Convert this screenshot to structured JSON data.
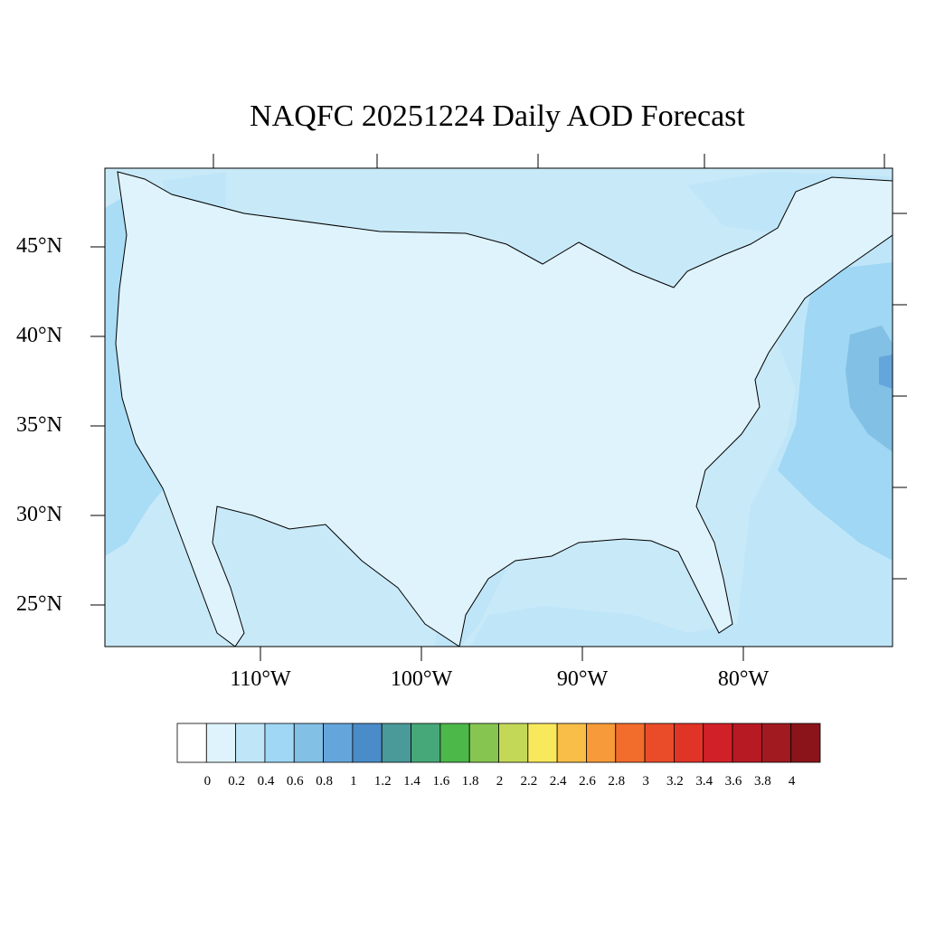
{
  "title": "NAQFC 20251224 Daily AOD Forecast",
  "map": {
    "lat_labels": [
      "45°N",
      "40°N",
      "35°N",
      "30°N",
      "25°N"
    ],
    "lon_labels": [
      "110°W",
      "100°W",
      "90°W",
      "80°W"
    ],
    "ocean_color": "#c8e9f8",
    "land_color": "#dff3fc",
    "features": [
      {
        "name": "pacific-coast-aod-band",
        "level": "0.4-0.6"
      },
      {
        "name": "atlantic-offshore-aod-patch",
        "level": "0.6-1.0"
      },
      {
        "name": "tennessee-valley-aod-patch",
        "level": "0.4-0.6"
      },
      {
        "name": "northeast-aod-patch",
        "level": "0.4-0.6"
      }
    ]
  },
  "colorbar": {
    "labels": [
      "0",
      "0.2",
      "0.4",
      "0.6",
      "0.8",
      "1",
      "1.2",
      "1.4",
      "1.6",
      "1.8",
      "2",
      "2.2",
      "2.4",
      "2.6",
      "2.8",
      "3",
      "3.2",
      "3.4",
      "3.6",
      "3.8",
      "4"
    ],
    "colors": [
      "#ffffff",
      "#dff3fc",
      "#bfe6f8",
      "#9fd7f4",
      "#82c0e6",
      "#64a6dc",
      "#4a8cc9",
      "#4a9a9a",
      "#46a878",
      "#4cb84a",
      "#86c650",
      "#c4d858",
      "#f8e85c",
      "#f8be48",
      "#f69a3a",
      "#f26c2c",
      "#ea4c2a",
      "#e03426",
      "#d22028",
      "#b81a24",
      "#a01a20",
      "#8a141a"
    ]
  }
}
